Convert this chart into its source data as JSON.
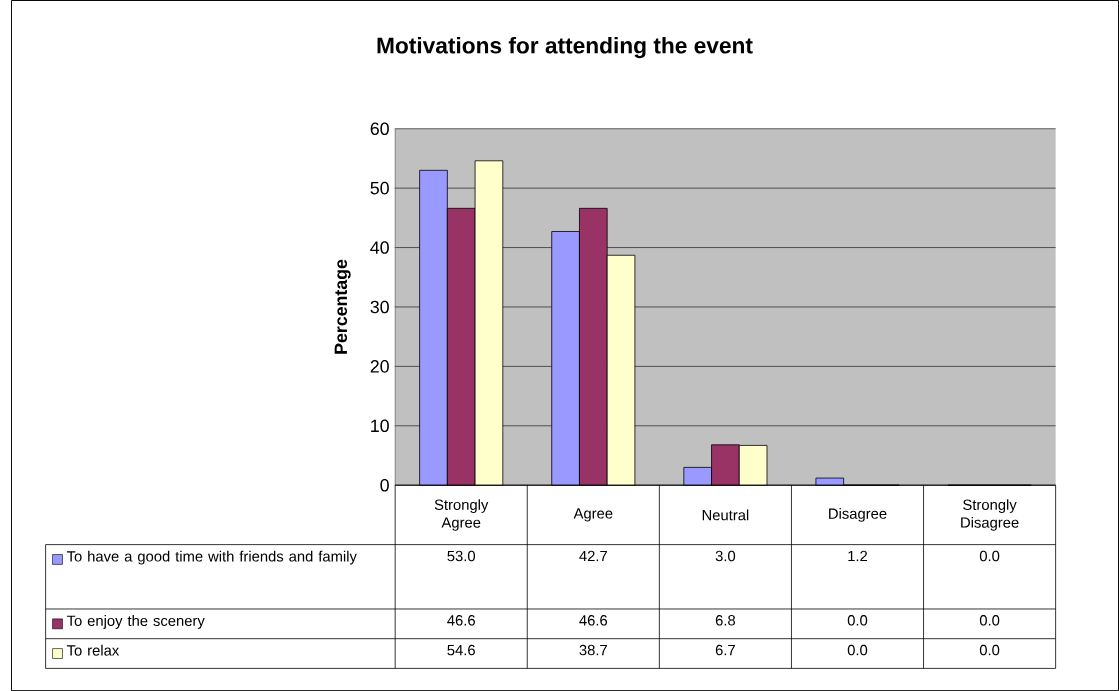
{
  "chart_data": {
    "type": "bar",
    "title": "Motivations for attending the event",
    "ylabel": "Percentage",
    "categories": [
      "Strongly Agree",
      "Agree",
      "Neutral",
      "Disagree",
      "Strongly Disagree"
    ],
    "series": [
      {
        "name": "To have a good time with friends and family",
        "color": "#9999ff",
        "values": [
          53.0,
          42.7,
          3.0,
          1.2,
          0.0
        ],
        "value_labels": [
          "53.0",
          "42.7",
          "3.0",
          "1.2",
          "0.0"
        ]
      },
      {
        "name": "To enjoy the scenery",
        "color": "#993366",
        "values": [
          46.6,
          46.6,
          6.8,
          0.0,
          0.0
        ],
        "value_labels": [
          "46.6",
          "46.6",
          "6.8",
          "0.0",
          "0.0"
        ]
      },
      {
        "name": "To relax",
        "color": "#ffffcc",
        "values": [
          54.6,
          38.7,
          6.7,
          0.0,
          0.0
        ],
        "value_labels": [
          "54.6",
          "38.7",
          "6.7",
          "0.0",
          "0.0"
        ]
      }
    ],
    "ylim": [
      0,
      60
    ],
    "yticks": [
      0,
      10,
      20,
      30,
      40,
      50,
      60
    ],
    "grid": "y",
    "legend": "bottom"
  }
}
